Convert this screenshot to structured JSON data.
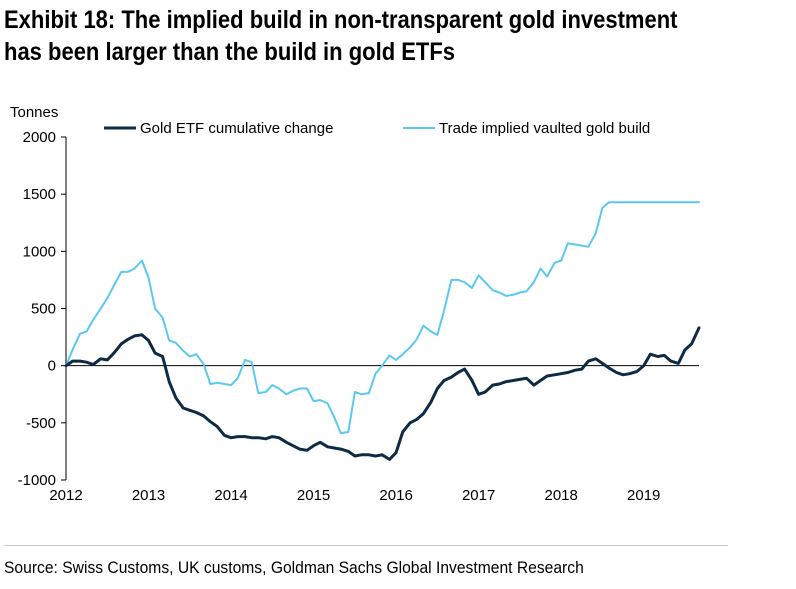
{
  "title_line1": "Exhibit 18: The implied build in non-transparent gold investment",
  "title_line2": "has been larger than the build in gold ETFs",
  "source": "Source: Swiss Customs, UK customs, Goldman Sachs Global Investment Research",
  "chart_data": {
    "type": "line",
    "ylabel": "Tonnes",
    "xlabel": "",
    "ylim": [
      -1000,
      2000
    ],
    "xlim": [
      2012.0,
      2019.67
    ],
    "yticks": [
      2000,
      1500,
      1000,
      500,
      0,
      -500,
      -1000
    ],
    "yticklabels": [
      "2000",
      "1500",
      "1000",
      "500",
      "0",
      "-500",
      "-1000"
    ],
    "xticks": [
      2012,
      2013,
      2014,
      2015,
      2016,
      2017,
      2018,
      2019
    ],
    "xticklabels": [
      "2012",
      "2013",
      "2014",
      "2015",
      "2016",
      "2017",
      "2018",
      "2019"
    ],
    "grid": false,
    "legend_position": "top",
    "series": [
      {
        "name": "Gold ETF cumulative change",
        "color": "#0d2b45",
        "x": [
          2012.0,
          2012.08,
          2012.17,
          2012.25,
          2012.33,
          2012.42,
          2012.5,
          2012.58,
          2012.67,
          2012.75,
          2012.83,
          2012.92,
          2013.0,
          2013.08,
          2013.17,
          2013.25,
          2013.33,
          2013.42,
          2013.5,
          2013.58,
          2013.67,
          2013.75,
          2013.83,
          2013.92,
          2014.0,
          2014.08,
          2014.17,
          2014.25,
          2014.33,
          2014.42,
          2014.5,
          2014.58,
          2014.67,
          2014.75,
          2014.83,
          2014.92,
          2015.0,
          2015.08,
          2015.17,
          2015.25,
          2015.33,
          2015.42,
          2015.5,
          2015.58,
          2015.67,
          2015.75,
          2015.83,
          2015.92,
          2016.0,
          2016.08,
          2016.17,
          2016.25,
          2016.33,
          2016.42,
          2016.5,
          2016.58,
          2016.67,
          2016.75,
          2016.83,
          2016.92,
          2017.0,
          2017.08,
          2017.17,
          2017.25,
          2017.33,
          2017.42,
          2017.5,
          2017.58,
          2017.67,
          2017.75,
          2017.83,
          2017.92,
          2018.0,
          2018.08,
          2018.17,
          2018.25,
          2018.33,
          2018.42,
          2018.5,
          2018.58,
          2018.67,
          2018.75,
          2018.83,
          2018.92,
          2019.0,
          2019.08,
          2019.17,
          2019.25,
          2019.33,
          2019.42,
          2019.5,
          2019.58,
          2019.67
        ],
        "values": [
          0,
          40,
          40,
          30,
          10,
          60,
          50,
          110,
          190,
          230,
          260,
          270,
          220,
          110,
          80,
          -140,
          -280,
          -370,
          -390,
          -410,
          -440,
          -490,
          -530,
          -610,
          -630,
          -620,
          -620,
          -630,
          -630,
          -640,
          -620,
          -630,
          -670,
          -700,
          -730,
          -740,
          -700,
          -670,
          -710,
          -720,
          -730,
          -750,
          -790,
          -780,
          -780,
          -790,
          -780,
          -820,
          -760,
          -580,
          -500,
          -470,
          -420,
          -320,
          -200,
          -130,
          -100,
          -60,
          -30,
          -130,
          -250,
          -230,
          -170,
          -160,
          -140,
          -130,
          -120,
          -110,
          -170,
          -130,
          -90,
          -80,
          -70,
          -60,
          -40,
          -30,
          40,
          60,
          20,
          -20,
          -60,
          -80,
          -70,
          -50,
          0,
          100,
          80,
          90,
          40,
          20,
          140,
          190,
          330
        ]
      },
      {
        "name": "Trade implied vaulted gold build",
        "color": "#5bc8ef",
        "x": [
          2012.0,
          2012.08,
          2012.17,
          2012.25,
          2012.33,
          2012.42,
          2012.5,
          2012.58,
          2012.67,
          2012.75,
          2012.83,
          2012.92,
          2013.0,
          2013.08,
          2013.17,
          2013.25,
          2013.33,
          2013.42,
          2013.5,
          2013.58,
          2013.67,
          2013.75,
          2013.83,
          2013.92,
          2014.0,
          2014.08,
          2014.17,
          2014.25,
          2014.33,
          2014.42,
          2014.5,
          2014.58,
          2014.67,
          2014.75,
          2014.83,
          2014.92,
          2015.0,
          2015.08,
          2015.17,
          2015.25,
          2015.33,
          2015.42,
          2015.5,
          2015.58,
          2015.67,
          2015.75,
          2015.83,
          2015.92,
          2016.0,
          2016.08,
          2016.17,
          2016.25,
          2016.33,
          2016.42,
          2016.5,
          2016.58,
          2016.67,
          2016.75,
          2016.83,
          2016.92,
          2017.0,
          2017.08,
          2017.17,
          2017.25,
          2017.33,
          2017.42,
          2017.5,
          2017.58,
          2017.67,
          2017.75,
          2017.83,
          2017.92,
          2018.0,
          2018.08,
          2018.17,
          2018.25,
          2018.33,
          2018.42,
          2018.5,
          2018.58,
          2018.67,
          2018.75,
          2018.83,
          2018.92,
          2019.0,
          2019.08,
          2019.17,
          2019.25,
          2019.33,
          2019.42,
          2019.5,
          2019.58,
          2019.67
        ],
        "values": [
          0,
          140,
          280,
          300,
          400,
          500,
          590,
          700,
          820,
          820,
          850,
          920,
          770,
          500,
          420,
          220,
          200,
          130,
          80,
          100,
          10,
          -160,
          -150,
          -160,
          -170,
          -110,
          50,
          30,
          -240,
          -230,
          -170,
          -200,
          -250,
          -220,
          -200,
          -200,
          -310,
          -300,
          -330,
          -450,
          -590,
          -580,
          -230,
          -250,
          -240,
          -70,
          0,
          90,
          50,
          100,
          160,
          230,
          350,
          300,
          270,
          480,
          750,
          750,
          730,
          680,
          790,
          730,
          660,
          640,
          610,
          620,
          640,
          650,
          730,
          850,
          780,
          900,
          920,
          1070,
          1060,
          1050,
          1040,
          1160,
          1380,
          1430,
          1430,
          1430,
          1430,
          1430,
          1430,
          1430,
          1430,
          1430,
          1430,
          1430,
          1430,
          1430,
          1430
        ]
      }
    ]
  }
}
